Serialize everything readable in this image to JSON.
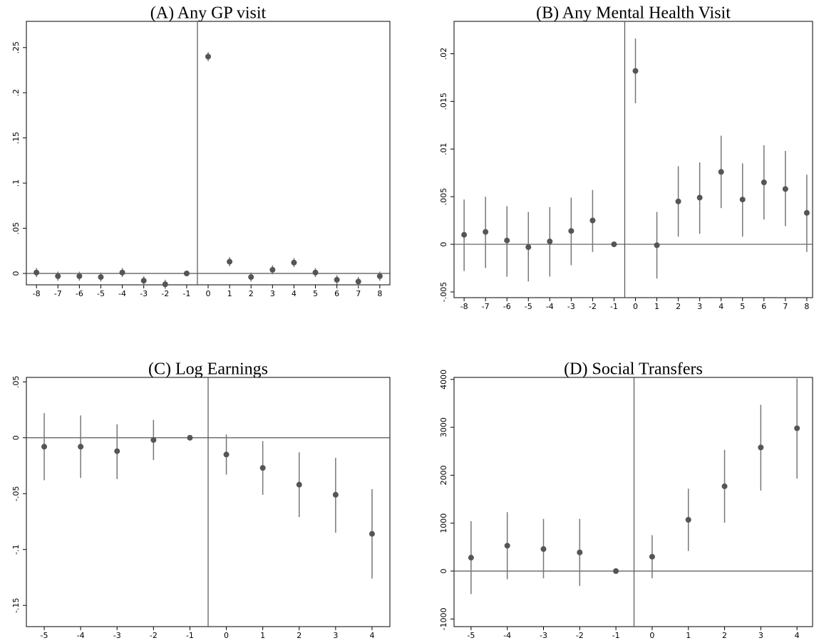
{
  "chart_data": [
    {
      "type": "scatter",
      "title": "(A) Any GP visit",
      "x": [
        -8,
        -7,
        -6,
        -5,
        -4,
        -3,
        -2,
        -1,
        0,
        1,
        2,
        3,
        4,
        5,
        6,
        7,
        8
      ],
      "values": [
        0.001,
        -0.003,
        -0.003,
        -0.004,
        0.001,
        -0.008,
        -0.012,
        0,
        0.24,
        0.013,
        -0.004,
        0.004,
        0.012,
        0.001,
        -0.007,
        -0.009,
        -0.003
      ],
      "lower": [
        -0.004,
        -0.008,
        -0.008,
        -0.009,
        -0.004,
        -0.013,
        -0.017,
        null,
        0.235,
        0.008,
        -0.009,
        -0.001,
        0.007,
        -0.004,
        -0.012,
        -0.014,
        -0.008
      ],
      "upper": [
        0.006,
        0.002,
        0.002,
        0.001,
        0.006,
        -0.003,
        -0.007,
        null,
        0.245,
        0.018,
        0.001,
        0.009,
        0.017,
        0.006,
        -0.002,
        -0.004,
        0.002
      ],
      "color": "#555555",
      "bar_color": "#777777",
      "xlim": [
        -8.47,
        8.47
      ],
      "xticks": [
        -8,
        -7,
        -6,
        -5,
        -4,
        -3,
        -2,
        -1,
        0,
        1,
        2,
        3,
        4,
        5,
        6,
        7,
        8
      ],
      "ylim": [
        -0.0126,
        0.279
      ],
      "yticks": [
        0,
        {
          "value": 0.05,
          "label": ".05"
        },
        {
          "value": 0.1,
          "label": ".1"
        },
        {
          "value": 0.15,
          "label": ".15"
        },
        {
          "value": 0.2,
          "label": ".2"
        },
        {
          "value": 0.25,
          "label": ".25"
        }
      ],
      "hline": 0,
      "vline": -0.5
    },
    {
      "type": "scatter",
      "title": "(B) Any Mental Health Visit",
      "x": [
        -8,
        -7,
        -6,
        -5,
        -4,
        -3,
        -2,
        -1,
        0,
        1,
        2,
        3,
        4,
        5,
        6,
        7,
        8
      ],
      "values": [
        0.001,
        0.0013,
        0.0004,
        -0.0003,
        0.0003,
        0.0014,
        0.0025,
        0,
        0.0182,
        -0.0001,
        0.0045,
        0.0049,
        0.0076,
        0.0047,
        0.0065,
        0.0058,
        0.0033
      ],
      "lower": [
        -0.0028,
        -0.0025,
        -0.0034,
        -0.0039,
        -0.0034,
        -0.0022,
        -0.0008,
        null,
        0.0148,
        -0.0036,
        0.0008,
        0.0011,
        0.0038,
        0.0008,
        0.0026,
        0.0019,
        -0.0008
      ],
      "upper": [
        0.0047,
        0.005,
        0.004,
        0.0034,
        0.0039,
        0.0049,
        0.0057,
        null,
        0.0216,
        0.0034,
        0.0082,
        0.0086,
        0.0114,
        0.0085,
        0.0104,
        0.0098,
        0.0073
      ],
      "color": "#555555",
      "bar_color": "#777777",
      "xlim": [
        -8.47,
        8.27
      ],
      "xticks": [
        -8,
        -7,
        -6,
        -5,
        -4,
        -3,
        -2,
        -1,
        0,
        1,
        2,
        3,
        4,
        5,
        6,
        7,
        8
      ],
      "ylim": [
        -0.0056,
        0.0234
      ],
      "yticks": [
        {
          "value": -0.005,
          "label": "-.005"
        },
        0,
        {
          "value": 0.005,
          "label": ".005"
        },
        {
          "value": 0.01,
          "label": ".01"
        },
        {
          "value": 0.015,
          "label": ".015"
        },
        {
          "value": 0.02,
          "label": ".02"
        }
      ],
      "hline": 0,
      "vline": -0.5
    },
    {
      "type": "scatter",
      "title": "(C) Log Earnings",
      "x": [
        -5,
        -4,
        -3,
        -2,
        -1,
        0,
        1,
        2,
        3,
        4
      ],
      "values": [
        -0.008,
        -0.008,
        -0.012,
        -0.002,
        0,
        -0.015,
        -0.027,
        -0.042,
        -0.051,
        -0.086
      ],
      "lower": [
        -0.038,
        -0.036,
        -0.037,
        -0.02,
        null,
        -0.033,
        -0.051,
        -0.071,
        -0.085,
        -0.126
      ],
      "upper": [
        0.022,
        0.02,
        0.012,
        0.016,
        null,
        0.003,
        -0.003,
        -0.013,
        -0.018,
        -0.046
      ],
      "color": "#555555",
      "bar_color": "#777777",
      "xlim": [
        -5.49,
        4.49
      ],
      "xticks": [
        -5,
        -4,
        -3,
        -2,
        -1,
        0,
        1,
        2,
        3,
        4
      ],
      "ylim": [
        -0.169,
        0.054
      ],
      "yticks": [
        {
          "value": -0.15,
          "label": "-.15"
        },
        {
          "value": -0.1,
          "label": "-.1"
        },
        {
          "value": -0.05,
          "label": "-.05"
        },
        0,
        {
          "value": 0.05,
          "label": ".05"
        }
      ],
      "hline": 0,
      "vline": -0.5
    },
    {
      "type": "scatter",
      "title": "(D) Social Transfers",
      "x": [
        -5,
        -4,
        -3,
        -2,
        -1,
        0,
        1,
        2,
        3,
        4
      ],
      "values": [
        280,
        530,
        460,
        390,
        0,
        300,
        1070,
        1770,
        2580,
        2980
      ],
      "lower": [
        -480,
        -170,
        -150,
        -310,
        null,
        -150,
        420,
        1010,
        1680,
        1930
      ],
      "upper": [
        1040,
        1230,
        1090,
        1090,
        null,
        750,
        1720,
        2530,
        3470,
        4020
      ],
      "color": "#555555",
      "bar_color": "#777777",
      "xlim": [
        -5.47,
        4.43
      ],
      "xticks": [
        -5,
        -4,
        -3,
        -2,
        -1,
        0,
        1,
        2,
        3,
        4
      ],
      "ylim": [
        -1159,
        4042
      ],
      "yticks": [
        -1000,
        0,
        1000,
        2000,
        3000,
        4000
      ],
      "hline": 0,
      "vline": -0.5
    }
  ]
}
